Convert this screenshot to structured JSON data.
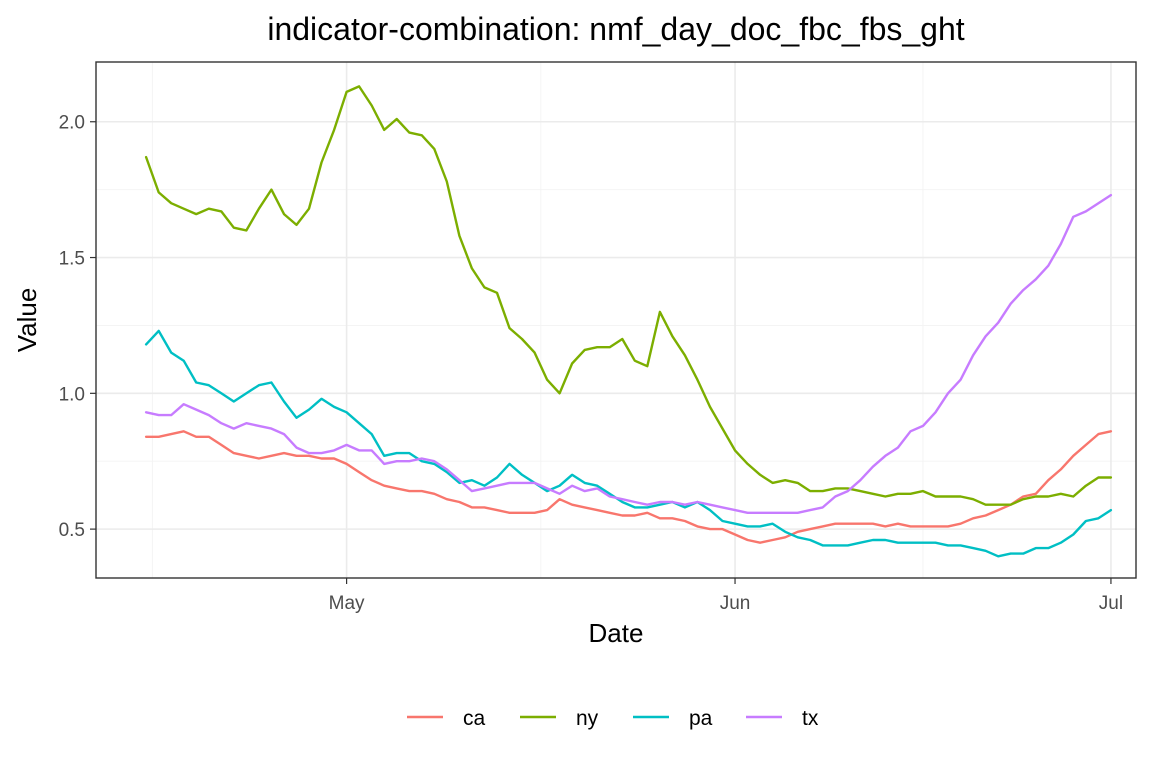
{
  "chart_data": {
    "type": "line",
    "title": "indicator-combination: nmf_day_doc_fbc_fbs_ght",
    "xlabel": "Date",
    "ylabel": "Value",
    "x_range": [
      "2020-04-11",
      "2020-07-03"
    ],
    "ylim": [
      0.32,
      2.22
    ],
    "grid": true,
    "legend_position": "bottom",
    "x_ticks": [
      {
        "date": "2020-05-01",
        "label": "May"
      },
      {
        "date": "2020-06-01",
        "label": "Jun"
      },
      {
        "date": "2020-07-01",
        "label": "Jul"
      }
    ],
    "y_ticks": [
      {
        "value": 0.5,
        "label": "0.5"
      },
      {
        "value": 1.0,
        "label": "1.0"
      },
      {
        "value": 1.5,
        "label": "1.5"
      },
      {
        "value": 2.0,
        "label": "2.0"
      }
    ],
    "x_start": "2020-04-15",
    "x_step_days": 1,
    "series": [
      {
        "name": "ca",
        "color": "#F8766D",
        "values": [
          0.84,
          0.84,
          0.85,
          0.86,
          0.84,
          0.84,
          0.81,
          0.78,
          0.77,
          0.76,
          0.77,
          0.78,
          0.77,
          0.77,
          0.76,
          0.76,
          0.74,
          0.71,
          0.68,
          0.66,
          0.65,
          0.64,
          0.64,
          0.63,
          0.61,
          0.6,
          0.58,
          0.58,
          0.57,
          0.56,
          0.56,
          0.56,
          0.57,
          0.61,
          0.59,
          0.58,
          0.57,
          0.56,
          0.55,
          0.55,
          0.56,
          0.54,
          0.54,
          0.53,
          0.51,
          0.5,
          0.5,
          0.48,
          0.46,
          0.45,
          0.46,
          0.47,
          0.49,
          0.5,
          0.51,
          0.52,
          0.52,
          0.52,
          0.52,
          0.51,
          0.52,
          0.51,
          0.51,
          0.51,
          0.51,
          0.52,
          0.54,
          0.55,
          0.57,
          0.59,
          0.62,
          0.63,
          0.68,
          0.72,
          0.77,
          0.81,
          0.85,
          0.86
        ]
      },
      {
        "name": "ny",
        "color": "#7CAE00",
        "values": [
          1.87,
          1.74,
          1.7,
          1.68,
          1.66,
          1.68,
          1.67,
          1.61,
          1.6,
          1.68,
          1.75,
          1.66,
          1.62,
          1.68,
          1.85,
          1.97,
          2.11,
          2.13,
          2.06,
          1.97,
          2.01,
          1.96,
          1.95,
          1.9,
          1.78,
          1.58,
          1.46,
          1.39,
          1.37,
          1.24,
          1.2,
          1.15,
          1.05,
          1.0,
          1.11,
          1.16,
          1.17,
          1.17,
          1.2,
          1.12,
          1.1,
          1.3,
          1.21,
          1.14,
          1.05,
          0.95,
          0.87,
          0.79,
          0.74,
          0.7,
          0.67,
          0.68,
          0.67,
          0.64,
          0.64,
          0.65,
          0.65,
          0.64,
          0.63,
          0.62,
          0.63,
          0.63,
          0.64,
          0.62,
          0.62,
          0.62,
          0.61,
          0.59,
          0.59,
          0.59,
          0.61,
          0.62,
          0.62,
          0.63,
          0.62,
          0.66,
          0.69,
          0.69
        ]
      },
      {
        "name": "pa",
        "color": "#00BFC4",
        "values": [
          1.18,
          1.23,
          1.15,
          1.12,
          1.04,
          1.03,
          1.0,
          0.97,
          1.0,
          1.03,
          1.04,
          0.97,
          0.91,
          0.94,
          0.98,
          0.95,
          0.93,
          0.89,
          0.85,
          0.77,
          0.78,
          0.78,
          0.75,
          0.74,
          0.71,
          0.67,
          0.68,
          0.66,
          0.69,
          0.74,
          0.7,
          0.67,
          0.64,
          0.66,
          0.7,
          0.67,
          0.66,
          0.63,
          0.6,
          0.58,
          0.58,
          0.59,
          0.6,
          0.58,
          0.6,
          0.57,
          0.53,
          0.52,
          0.51,
          0.51,
          0.52,
          0.49,
          0.47,
          0.46,
          0.44,
          0.44,
          0.44,
          0.45,
          0.46,
          0.46,
          0.45,
          0.45,
          0.45,
          0.45,
          0.44,
          0.44,
          0.43,
          0.42,
          0.4,
          0.41,
          0.41,
          0.43,
          0.43,
          0.45,
          0.48,
          0.53,
          0.54,
          0.57
        ]
      },
      {
        "name": "tx",
        "color": "#C77CFF",
        "values": [
          0.93,
          0.92,
          0.92,
          0.96,
          0.94,
          0.92,
          0.89,
          0.87,
          0.89,
          0.88,
          0.87,
          0.85,
          0.8,
          0.78,
          0.78,
          0.79,
          0.81,
          0.79,
          0.79,
          0.74,
          0.75,
          0.75,
          0.76,
          0.75,
          0.72,
          0.68,
          0.64,
          0.65,
          0.66,
          0.67,
          0.67,
          0.67,
          0.65,
          0.63,
          0.66,
          0.64,
          0.65,
          0.62,
          0.61,
          0.6,
          0.59,
          0.6,
          0.6,
          0.59,
          0.6,
          0.59,
          0.58,
          0.57,
          0.56,
          0.56,
          0.56,
          0.56,
          0.56,
          0.57,
          0.58,
          0.62,
          0.64,
          0.68,
          0.73,
          0.77,
          0.8,
          0.86,
          0.88,
          0.93,
          1.0,
          1.05,
          1.14,
          1.21,
          1.26,
          1.33,
          1.38,
          1.42,
          1.47,
          1.55,
          1.65,
          1.67,
          1.7,
          1.73
        ]
      }
    ]
  }
}
